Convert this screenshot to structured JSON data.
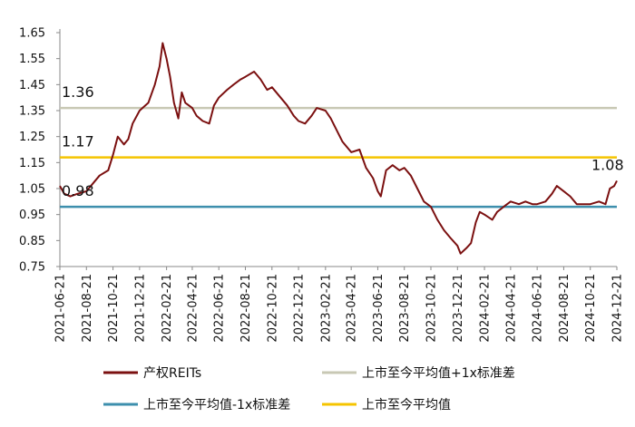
{
  "chart_data": {
    "type": "line",
    "title": "",
    "xlabel": "",
    "ylabel": "",
    "ylim": [
      0.75,
      1.65
    ],
    "yticks": [
      "0.75",
      "0.85",
      "0.95",
      "1.05",
      "1.15",
      "1.25",
      "1.35",
      "1.45",
      "1.55",
      "1.65"
    ],
    "xlim": [
      "2021-06-21",
      "2024-12-21"
    ],
    "xticks": [
      "2021-06-21",
      "2021-08-21",
      "2021-10-21",
      "2021-12-21",
      "2022-02-21",
      "2022-04-21",
      "2022-06-21",
      "2022-08-21",
      "2022-10-21",
      "2022-12-21",
      "2023-02-21",
      "2023-04-21",
      "2023-06-21",
      "2023-08-21",
      "2023-10-21",
      "2023-12-21",
      "2024-02-21",
      "2024-04-21",
      "2024-06-21",
      "2024-08-21",
      "2024-10-21",
      "2024-12-21"
    ],
    "grid": false,
    "legend_position": "bottom",
    "series": [
      {
        "name": "产权REITs",
        "color": "#7b1010",
        "points": [
          [
            "2021-06-21",
            1.06
          ],
          [
            "2021-07-01",
            1.03
          ],
          [
            "2021-07-15",
            1.02
          ],
          [
            "2021-08-01",
            1.03
          ],
          [
            "2021-08-21",
            1.04
          ],
          [
            "2021-09-05",
            1.07
          ],
          [
            "2021-09-20",
            1.1
          ],
          [
            "2021-10-10",
            1.12
          ],
          [
            "2021-10-21",
            1.18
          ],
          [
            "2021-11-01",
            1.25
          ],
          [
            "2021-11-15",
            1.22
          ],
          [
            "2021-11-25",
            1.24
          ],
          [
            "2021-12-05",
            1.3
          ],
          [
            "2021-12-21",
            1.35
          ],
          [
            "2022-01-10",
            1.38
          ],
          [
            "2022-01-25",
            1.45
          ],
          [
            "2022-02-05",
            1.52
          ],
          [
            "2022-02-12",
            1.61
          ],
          [
            "2022-02-21",
            1.55
          ],
          [
            "2022-03-01",
            1.48
          ],
          [
            "2022-03-10",
            1.38
          ],
          [
            "2022-03-20",
            1.32
          ],
          [
            "2022-03-28",
            1.42
          ],
          [
            "2022-04-05",
            1.38
          ],
          [
            "2022-04-21",
            1.36
          ],
          [
            "2022-05-01",
            1.33
          ],
          [
            "2022-05-15",
            1.31
          ],
          [
            "2022-05-30",
            1.3
          ],
          [
            "2022-06-10",
            1.37
          ],
          [
            "2022-06-21",
            1.4
          ],
          [
            "2022-07-10",
            1.43
          ],
          [
            "2022-07-25",
            1.45
          ],
          [
            "2022-08-10",
            1.47
          ],
          [
            "2022-08-21",
            1.48
          ],
          [
            "2022-09-10",
            1.5
          ],
          [
            "2022-09-25",
            1.47
          ],
          [
            "2022-10-10",
            1.43
          ],
          [
            "2022-10-21",
            1.44
          ],
          [
            "2022-11-10",
            1.4
          ],
          [
            "2022-11-25",
            1.37
          ],
          [
            "2022-12-10",
            1.33
          ],
          [
            "2022-12-21",
            1.31
          ],
          [
            "2023-01-05",
            1.3
          ],
          [
            "2023-01-20",
            1.33
          ],
          [
            "2023-02-01",
            1.36
          ],
          [
            "2023-02-21",
            1.35
          ],
          [
            "2023-03-05",
            1.32
          ],
          [
            "2023-03-20",
            1.27
          ],
          [
            "2023-04-01",
            1.23
          ],
          [
            "2023-04-21",
            1.19
          ],
          [
            "2023-05-10",
            1.2
          ],
          [
            "2023-05-25",
            1.13
          ],
          [
            "2023-06-10",
            1.09
          ],
          [
            "2023-06-21",
            1.04
          ],
          [
            "2023-06-28",
            1.02
          ],
          [
            "2023-07-10",
            1.12
          ],
          [
            "2023-07-25",
            1.14
          ],
          [
            "2023-08-10",
            1.12
          ],
          [
            "2023-08-21",
            1.13
          ],
          [
            "2023-09-05",
            1.1
          ],
          [
            "2023-09-20",
            1.05
          ],
          [
            "2023-10-05",
            1.0
          ],
          [
            "2023-10-21",
            0.98
          ],
          [
            "2023-11-05",
            0.93
          ],
          [
            "2023-11-20",
            0.89
          ],
          [
            "2023-12-05",
            0.86
          ],
          [
            "2023-12-21",
            0.83
          ],
          [
            "2023-12-28",
            0.8
          ],
          [
            "2024-01-10",
            0.82
          ],
          [
            "2024-01-21",
            0.84
          ],
          [
            "2024-02-01",
            0.92
          ],
          [
            "2024-02-10",
            0.96
          ],
          [
            "2024-02-21",
            0.95
          ],
          [
            "2024-03-10",
            0.93
          ],
          [
            "2024-03-21",
            0.96
          ],
          [
            "2024-04-05",
            0.98
          ],
          [
            "2024-04-21",
            1.0
          ],
          [
            "2024-05-10",
            0.99
          ],
          [
            "2024-05-25",
            1.0
          ],
          [
            "2024-06-10",
            0.99
          ],
          [
            "2024-06-21",
            0.99
          ],
          [
            "2024-07-10",
            1.0
          ],
          [
            "2024-07-25",
            1.03
          ],
          [
            "2024-08-05",
            1.06
          ],
          [
            "2024-08-21",
            1.04
          ],
          [
            "2024-09-05",
            1.02
          ],
          [
            "2024-09-20",
            0.99
          ],
          [
            "2024-10-05",
            0.99
          ],
          [
            "2024-10-21",
            0.99
          ],
          [
            "2024-11-10",
            1.0
          ],
          [
            "2024-11-25",
            0.99
          ],
          [
            "2024-12-05",
            1.05
          ],
          [
            "2024-12-15",
            1.06
          ],
          [
            "2024-12-21",
            1.08
          ]
        ]
      },
      {
        "name": "上市至今平均值+1x标准差",
        "color": "#c8c8b4",
        "value": 1.36,
        "label": "1.36"
      },
      {
        "name": "上市至今平均值-1x标准差",
        "color": "#3d8fad",
        "value": 0.98,
        "label": "0.98"
      },
      {
        "name": "上市至今平均值",
        "color": "#f5c400",
        "value": 1.17,
        "label": "1.17"
      }
    ],
    "annotations": [
      {
        "text": "1.36",
        "series": "上市至今平均值+1x标准差"
      },
      {
        "text": "1.17",
        "series": "上市至今平均值"
      },
      {
        "text": "0.98",
        "series": "上市至今平均值-1x标准差"
      },
      {
        "text": "1.08",
        "series": "产权REITs"
      }
    ]
  }
}
